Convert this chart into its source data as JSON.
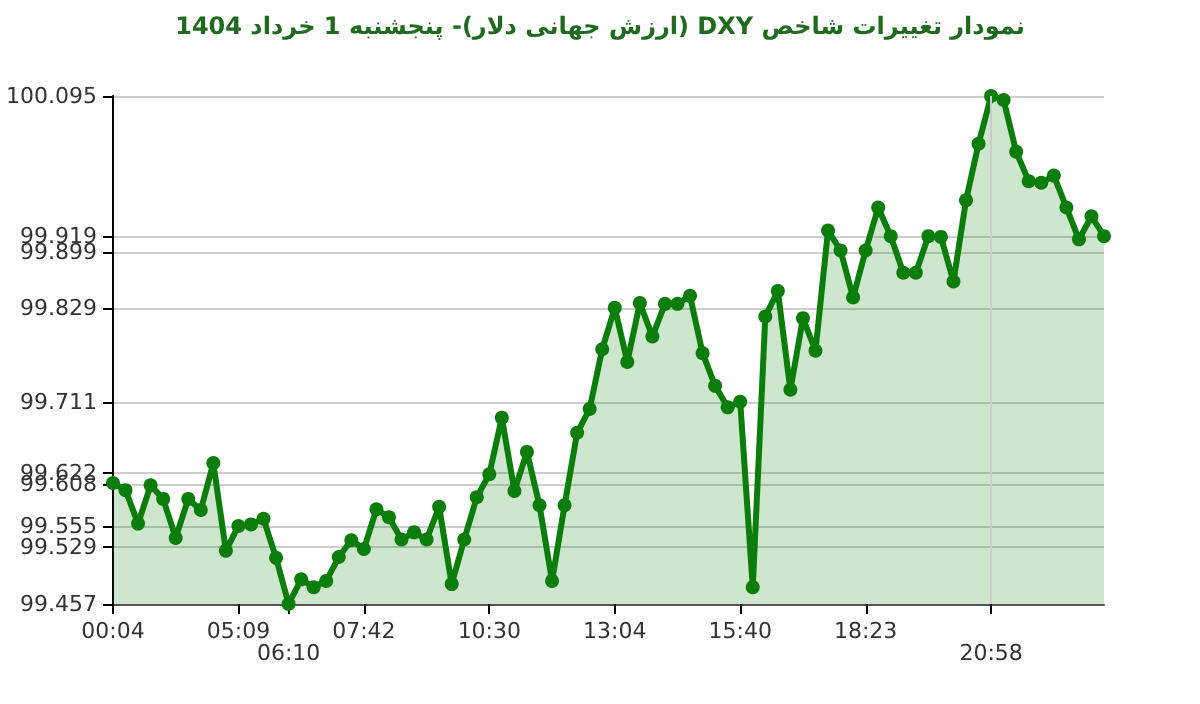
{
  "chart_data": {
    "type": "area",
    "title": "نمودار تغییرات شاخص DXY (ارزش جهانی دلار)- پنجشنبه  1 خرداد 1404",
    "categories": [
      "00:04",
      null,
      null,
      null,
      null,
      null,
      null,
      null,
      null,
      null,
      "05:09",
      null,
      null,
      null,
      "06:10",
      null,
      null,
      null,
      null,
      null,
      "07:42",
      null,
      null,
      null,
      null,
      null,
      null,
      null,
      null,
      null,
      "10:30",
      null,
      null,
      null,
      null,
      null,
      null,
      null,
      null,
      null,
      "13:04",
      null,
      null,
      null,
      null,
      null,
      null,
      null,
      null,
      null,
      "15:40",
      null,
      null,
      null,
      null,
      null,
      null,
      null,
      null,
      null,
      "18:23",
      null,
      null,
      null,
      null,
      null,
      null,
      null,
      null,
      null,
      "20:58",
      null,
      null,
      null,
      null,
      null,
      null,
      null,
      null,
      null
    ],
    "series": [
      {
        "color": "#0a7d0a",
        "values": [
          99.609,
          99.6,
          99.558,
          99.606,
          99.589,
          99.54,
          99.589,
          99.575,
          99.634,
          99.524,
          99.555,
          99.557,
          99.564,
          99.515,
          99.457,
          99.488,
          99.478,
          99.486,
          99.516,
          99.537,
          99.526,
          99.576,
          99.566,
          99.538,
          99.547,
          99.538,
          99.579,
          99.482,
          99.538,
          99.591,
          99.62,
          99.691,
          99.599,
          99.648,
          99.581,
          99.486,
          99.581,
          99.672,
          99.702,
          99.777,
          99.829,
          99.761,
          99.835,
          99.793,
          99.834,
          99.834,
          99.844,
          99.772,
          99.731,
          99.704,
          99.711,
          99.478,
          99.818,
          99.85,
          99.726,
          99.816,
          99.775,
          99.926,
          99.901,
          99.842,
          99.901,
          99.955,
          99.919,
          99.873,
          99.873,
          99.919,
          99.918,
          99.862,
          99.964,
          100.035,
          100.095,
          100.09,
          100.025,
          99.988,
          99.986,
          99.995,
          99.955,
          99.915,
          99.944,
          99.919
        ]
      }
    ],
    "ylim": [
      99.457,
      100.095
    ],
    "yticks": [
      99.457,
      99.529,
      99.555,
      99.608,
      99.622,
      99.711,
      99.829,
      99.899,
      99.919,
      100.095
    ],
    "ref_lines": [
      {
        "axis": "x",
        "value": "20:58",
        "color": "#cccccc"
      }
    ],
    "grid": "y",
    "marker": "circle"
  }
}
